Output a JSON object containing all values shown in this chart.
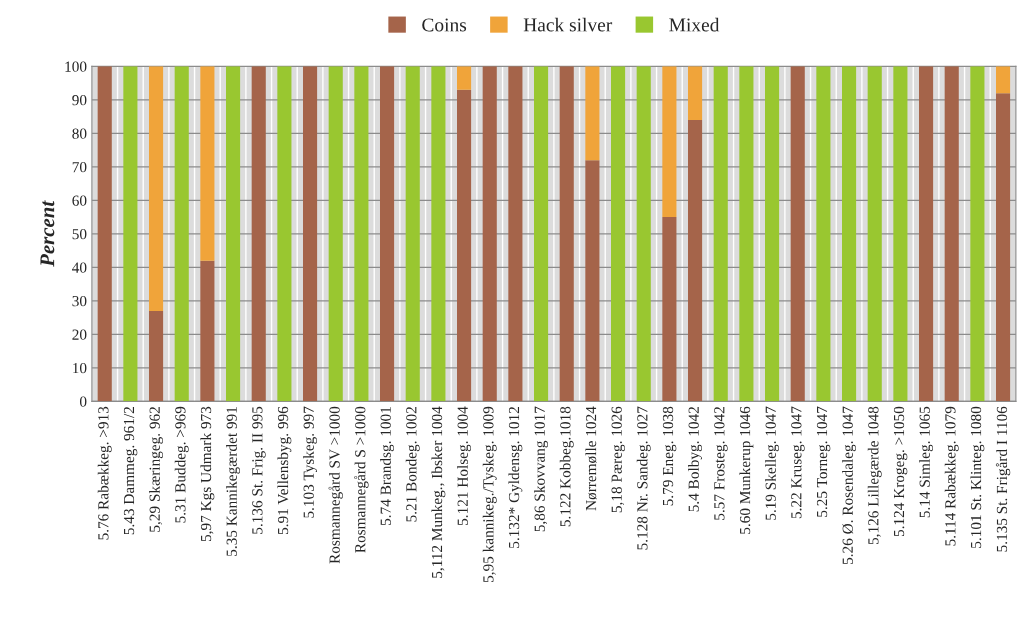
{
  "chart_data": {
    "type": "bar",
    "stacked": true,
    "ylabel": "Percent",
    "ylim": [
      0,
      100
    ],
    "yticks": [
      0,
      10,
      20,
      30,
      40,
      50,
      60,
      70,
      80,
      90,
      100
    ],
    "grid": "y",
    "legend": "top",
    "categories": [
      "5.76 Rabækkeg. >913",
      "5.43 Dammeg. 961/2",
      "5,29 Skæringeg. 962",
      "5.31 Buddeg. >969",
      "5,97 Kgs Udmark 973",
      "5.35 Kannikegærdet 991",
      "5.136 St. Frig. II 995",
      "5.91 Vellensbyg. 996",
      "5.103 Tyskeg. 997",
      "Rosmannegård SV >1000",
      "Rosmannegård S >1000",
      "5.74 Brandsg. 1001",
      "5.21 Bondeg. 1002",
      "5,112 Munkeg., Ibsker 1004",
      "5.121 Holseg. 1004",
      "5,95 kannikeg./Tyskeg. 1009",
      "5.132* Gyldensg. 1012",
      "5,86 Skovvang 1017",
      "5.122 Kobbeg.1018",
      "Nørremølle 1024",
      "5,18 Pæreg. 1026",
      "5.128 Nr. Sandeg. 1027",
      "5.79 Eneg. 1038",
      "5.4 Bolbyg. 1042",
      "5.57 Frosteg. 1042",
      "5.60 Munkerup 1046",
      "5.19 Skelleg. 1047",
      "5.22 Kruseg. 1047",
      "5.25 Torneg. 1047",
      "5.26 Ø. Rosendaleg. 1047",
      "5,126 Lillegærde 1048",
      "5.124 Krogeg. >1050",
      "5.14 Simleg. 1065",
      "5.114 Rabækkeg. 1079",
      "5.101 St. Klinteg. 1080",
      "5.135 St. Frigård I 1106"
    ],
    "series": [
      {
        "name": "Coins",
        "color": "#a5644a",
        "values": [
          100,
          0,
          27,
          0,
          42,
          0,
          100,
          0,
          100,
          0,
          0,
          100,
          0,
          0,
          93,
          100,
          100,
          0,
          100,
          72,
          0,
          0,
          55,
          84,
          0,
          0,
          0,
          100,
          0,
          0,
          0,
          0,
          100,
          100,
          0,
          92
        ]
      },
      {
        "name": "Hack silver",
        "color": "#f0a43a",
        "values": [
          0,
          0,
          73,
          0,
          58,
          0,
          0,
          0,
          0,
          0,
          0,
          0,
          0,
          0,
          7,
          0,
          0,
          0,
          0,
          28,
          0,
          0,
          45,
          16,
          0,
          0,
          0,
          0,
          0,
          0,
          0,
          0,
          0,
          0,
          0,
          8
        ]
      },
      {
        "name": "Mixed",
        "color": "#99c730",
        "values": [
          0,
          100,
          0,
          100,
          0,
          100,
          0,
          100,
          0,
          100,
          100,
          0,
          100,
          100,
          0,
          0,
          0,
          100,
          0,
          0,
          100,
          100,
          0,
          0,
          100,
          100,
          100,
          0,
          100,
          100,
          100,
          100,
          0,
          0,
          100,
          0
        ]
      }
    ]
  }
}
